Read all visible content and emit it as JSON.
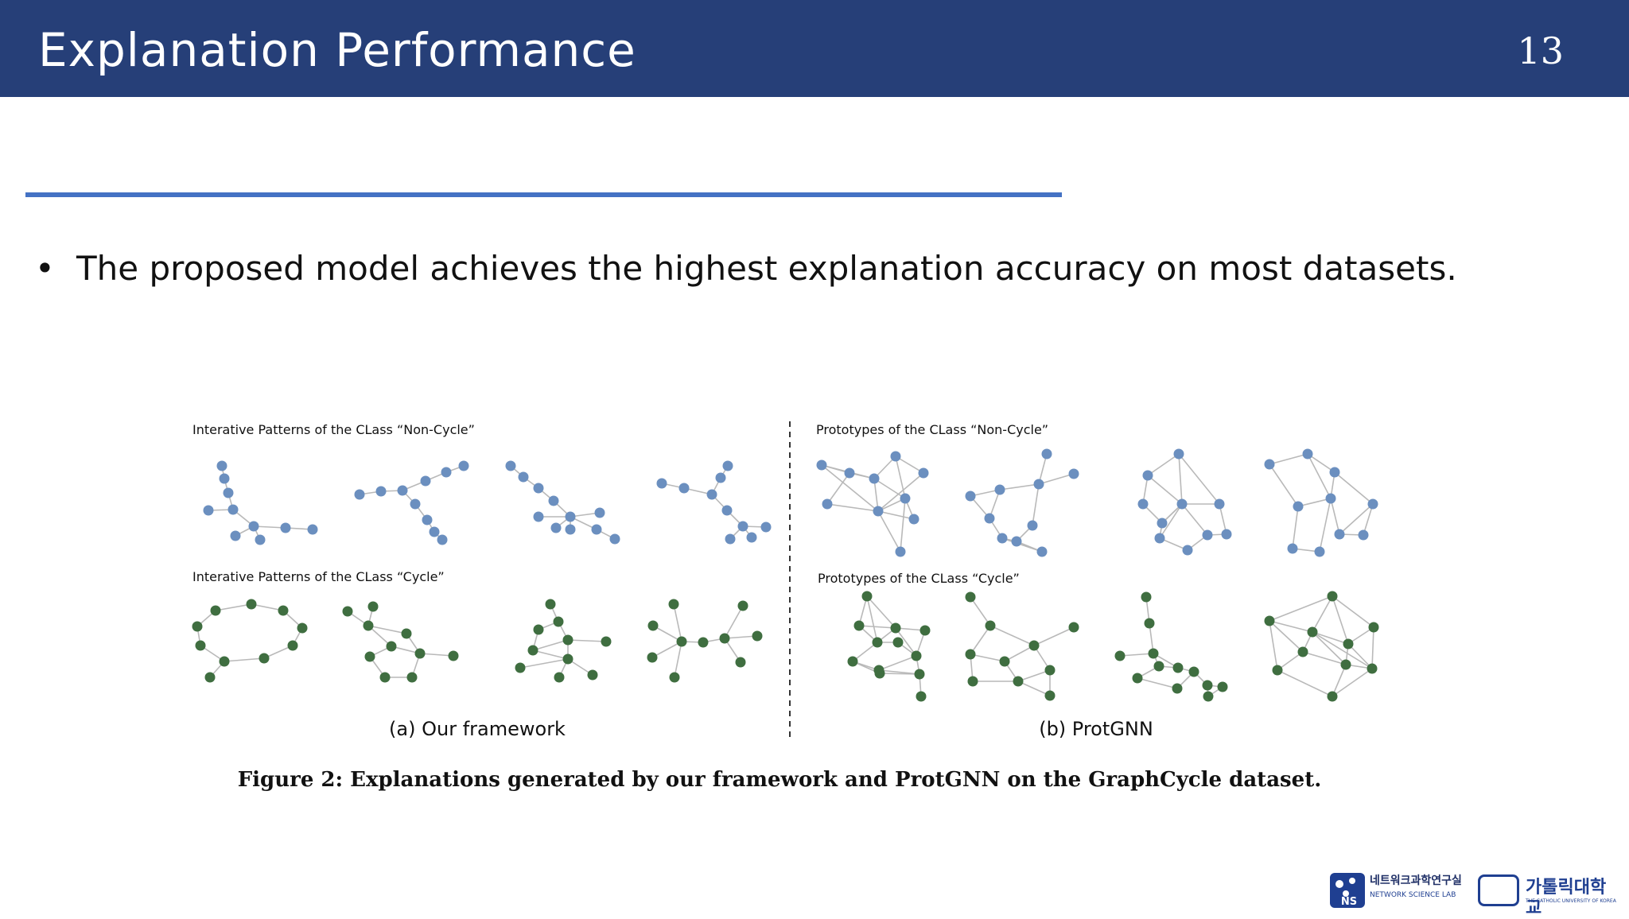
{
  "slide": {
    "title": "Explanation Performance",
    "page_number": "13",
    "bullet": "The proposed model achieves the highest explanation accuracy on most datasets."
  },
  "figure": {
    "panel_a": {
      "noncycle_title": "Interative Patterns of the CLass “Non-Cycle”",
      "cycle_title": "Interative Patterns of the CLass “Cycle”",
      "label": "(a) Our framework"
    },
    "panel_b": {
      "noncycle_title": "Prototypes of the CLass “Non-Cycle”",
      "cycle_title": "Prototypes of the CLass “Cycle”",
      "label": "(b) ProtGNN"
    },
    "caption": "Figure 2: Explanations generated by our framework and ProtGNN on the GraphCycle dataset.",
    "colors": {
      "noncycle_node": "#6b8fbf",
      "cycle_node": "#3f6e40",
      "edge": "#b9b9b9"
    }
  },
  "logos": {
    "lab_korean": "네트워크과학연구실",
    "lab_english": "NETWORK SCIENCE LAB",
    "lab_abbrev": "NS",
    "univ_korean": "가톨릭대학교",
    "univ_english": "THE CATHOLIC UNIVERSITY OF KOREA"
  }
}
